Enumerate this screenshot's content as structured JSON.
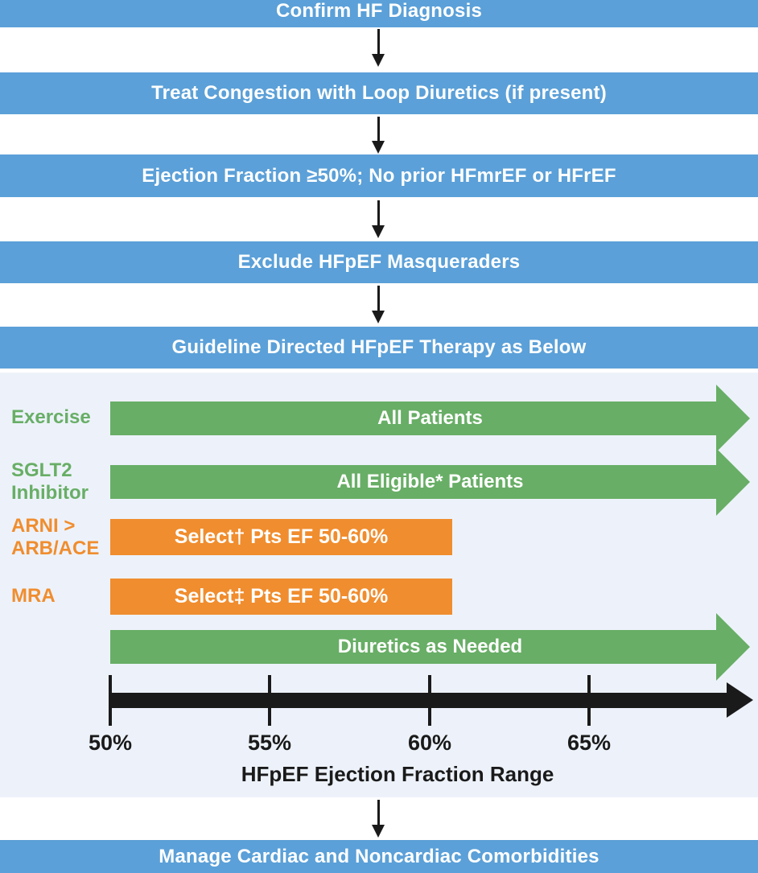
{
  "colors": {
    "banner_blue": "#5ba0d8",
    "green": "#68ae66",
    "orange": "#f08d2e",
    "panel_bg": "#edf2fa",
    "arrow_black": "#1a1a1a",
    "text_white": "#ffffff"
  },
  "banners": {
    "confirm": "Confirm HF Diagnosis",
    "congestion": "Treat Congestion with Loop Diuretics (if present)",
    "ef_criteria": "Ejection Fraction ≥50%; No prior HFmrEF or HFrEF",
    "exclude": "Exclude HFpEF Masqueraders",
    "guideline": "Guideline Directed HFpEF Therapy as Below",
    "manage": "Manage Cardiac and Noncardiac Comorbidities"
  },
  "therapy": {
    "rows": [
      {
        "label_lines": [
          "Exercise"
        ],
        "bar_text": "All Patients",
        "bar_style": "green-arrow",
        "ef_extent": "entire range"
      },
      {
        "label_lines": [
          "SGLT2",
          "Inhibitor"
        ],
        "bar_text": "All Eligible* Patients",
        "bar_style": "green-arrow",
        "ef_extent": "entire range"
      },
      {
        "label_lines": [
          "ARNI >",
          "ARB/ACE"
        ],
        "bar_text": "Select† Pts EF 50-60%",
        "bar_style": "orange-box",
        "ef_extent": "50-60%"
      },
      {
        "label_lines": [
          "MRA"
        ],
        "bar_text": "Select‡ Pts EF 50-60%",
        "bar_style": "orange-box",
        "ef_extent": "50-60%"
      },
      {
        "label_lines": [],
        "bar_text": "Diuretics as Needed",
        "bar_style": "green-arrow",
        "ef_extent": "entire range"
      }
    ],
    "axis": {
      "tick_labels": [
        "50%",
        "55%",
        "60%",
        "65%"
      ],
      "title": "HFpEF Ejection Fraction Range"
    }
  }
}
